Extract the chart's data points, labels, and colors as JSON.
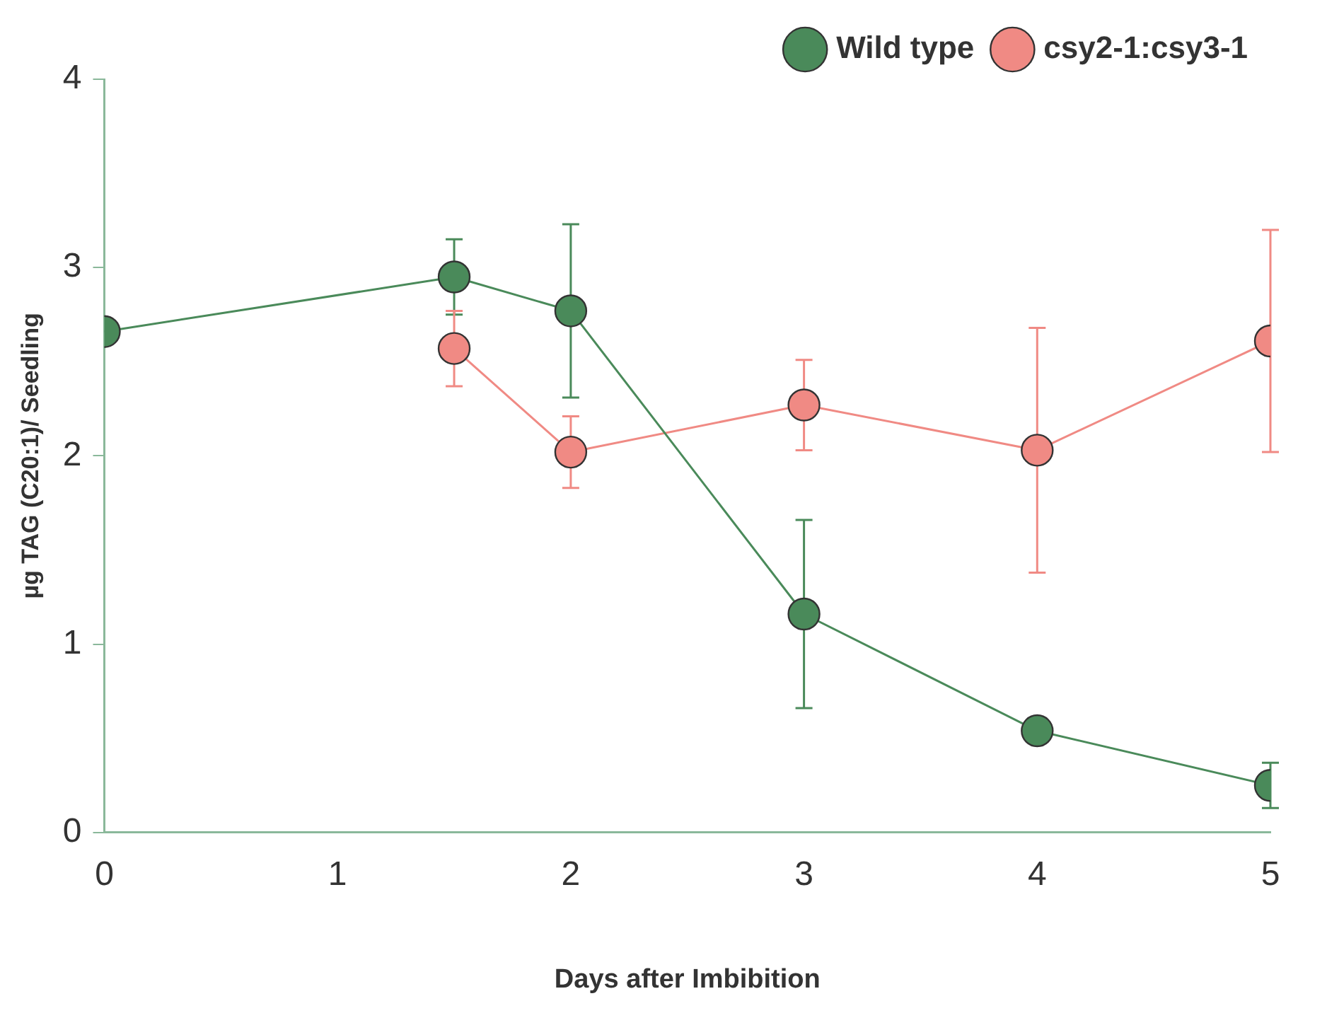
{
  "chart_data": {
    "type": "line",
    "xlabel": "Days after Imbibition",
    "ylabel": "µg TAG (C20:1)/ Seedling",
    "xlim": [
      0,
      5
    ],
    "xticks": [
      0,
      1,
      2,
      3,
      4,
      5
    ],
    "ylim": [
      0,
      4
    ],
    "yticks": [
      0,
      1,
      2,
      3,
      4
    ],
    "grid": false,
    "legend": "top right",
    "marker": "circle",
    "line_style": "solid",
    "series": [
      {
        "name": "Wild type",
        "color": "#4a8a5a",
        "x": [
          0,
          1.5,
          2,
          3,
          4,
          5
        ],
        "values": [
          2.66,
          2.95,
          2.77,
          1.16,
          0.54,
          0.25
        ],
        "errors": [
          null,
          0.2,
          0.46,
          0.5,
          null,
          0.12
        ]
      },
      {
        "name": "csy2-1:csy3-1",
        "color": "#f08a84",
        "x": [
          1.5,
          2,
          3,
          4,
          5
        ],
        "values": [
          2.57,
          2.02,
          2.27,
          2.03,
          2.61
        ],
        "errors": [
          0.2,
          0.19,
          0.24,
          0.65,
          0.59
        ]
      }
    ]
  }
}
